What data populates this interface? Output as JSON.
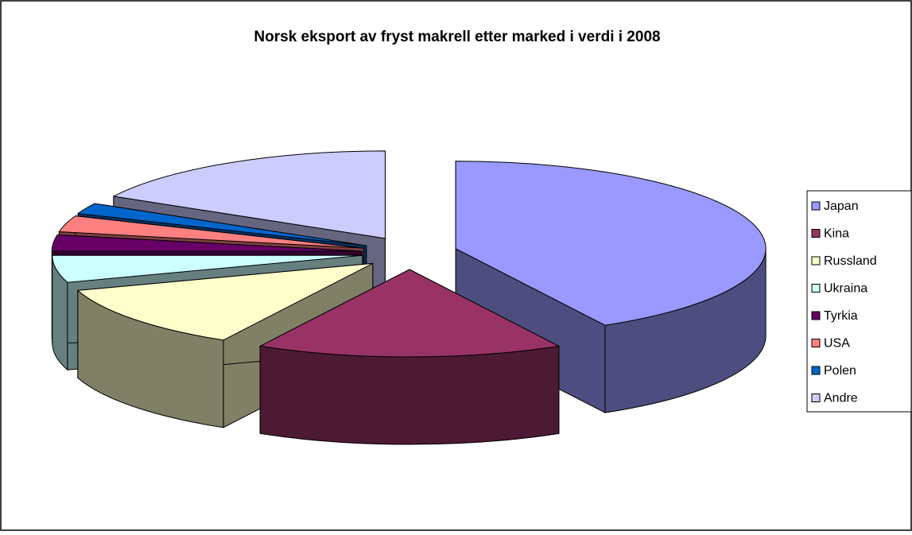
{
  "chart_data": {
    "type": "pie3d",
    "title": "Norsk eksport av fryst makrell etter marked i verdi i 2008",
    "categories": [
      "Japan",
      "Kina",
      "Russland",
      "Ukraina",
      "Tyrkia",
      "USA",
      "Polen",
      "Andre"
    ],
    "values": [
      42,
      16,
      12,
      5,
      3,
      3,
      2,
      17
    ],
    "colors": [
      "#9999ff",
      "#993366",
      "#ffffcc",
      "#ccffff",
      "#660066",
      "#ff8080",
      "#0066cc",
      "#ccccff"
    ],
    "legend": "right"
  }
}
